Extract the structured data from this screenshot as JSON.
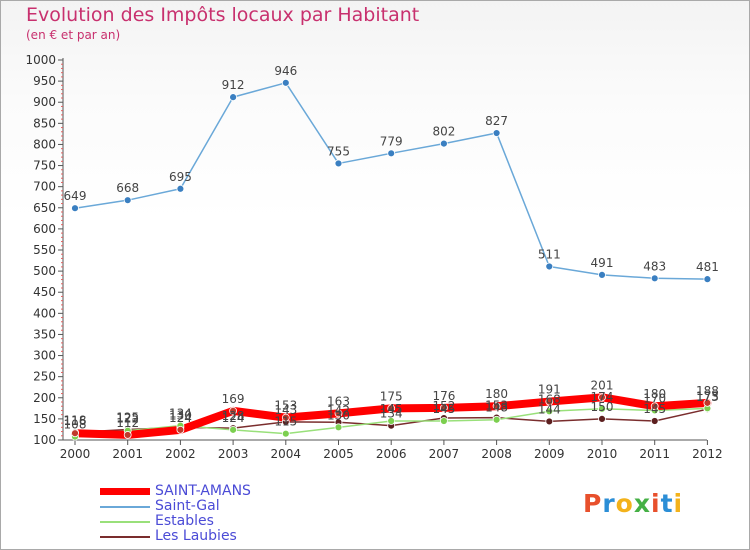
{
  "title": "Evolution des Impôts locaux par Habitant",
  "subtitle": "(en € et par an)",
  "brand": {
    "letters": [
      "P",
      "r",
      "o",
      "x",
      "i",
      "t",
      "i"
    ],
    "colors": [
      "#e8502c",
      "#2b8ed6",
      "#f3b21b",
      "#45b045",
      "#e8502c",
      "#2b8ed6",
      "#f3b21b"
    ]
  },
  "chart_data": {
    "type": "line",
    "x": [
      "2000",
      "2001",
      "2002",
      "2003",
      "2004",
      "2005",
      "2006",
      "2007",
      "2008",
      "2009",
      "2010",
      "2011",
      "2012"
    ],
    "ylim": [
      100,
      1000
    ],
    "yticks": [
      100,
      150,
      200,
      250,
      300,
      350,
      400,
      450,
      500,
      550,
      600,
      650,
      700,
      750,
      800,
      850,
      900,
      950,
      1000
    ],
    "grid": false,
    "legend_position": "bottom-left",
    "series": [
      {
        "name": "SAINT-AMANS",
        "color": "#ff0000",
        "width": 8,
        "marker": "#c0392b",
        "labels": true,
        "values": [
          116,
          112,
          124,
          169,
          153,
          163,
          175,
          176,
          180,
          191,
          201,
          180,
          188
        ]
      },
      {
        "name": "Saint-Gal",
        "color": "#6aa8d8",
        "width": 1.5,
        "marker": "#3a7fc1",
        "labels": true,
        "values": [
          649,
          668,
          695,
          912,
          946,
          755,
          779,
          802,
          827,
          511,
          491,
          483,
          481
        ]
      },
      {
        "name": "Estables",
        "color": "#99e07a",
        "width": 1.5,
        "marker": "#7ccf4f",
        "labels": true,
        "values": [
          108,
          122,
          134,
          124,
          115,
          130,
          145,
          145,
          148,
          168,
          174,
          170,
          175
        ]
      },
      {
        "name": "Les Laubies",
        "color": "#7a2d2d",
        "width": 1.5,
        "marker": "#5c1f1f",
        "labels": true,
        "values": [
          118,
          125,
          130,
          128,
          143,
          142,
          134,
          152,
          153,
          144,
          150,
          145,
          173
        ]
      }
    ]
  }
}
